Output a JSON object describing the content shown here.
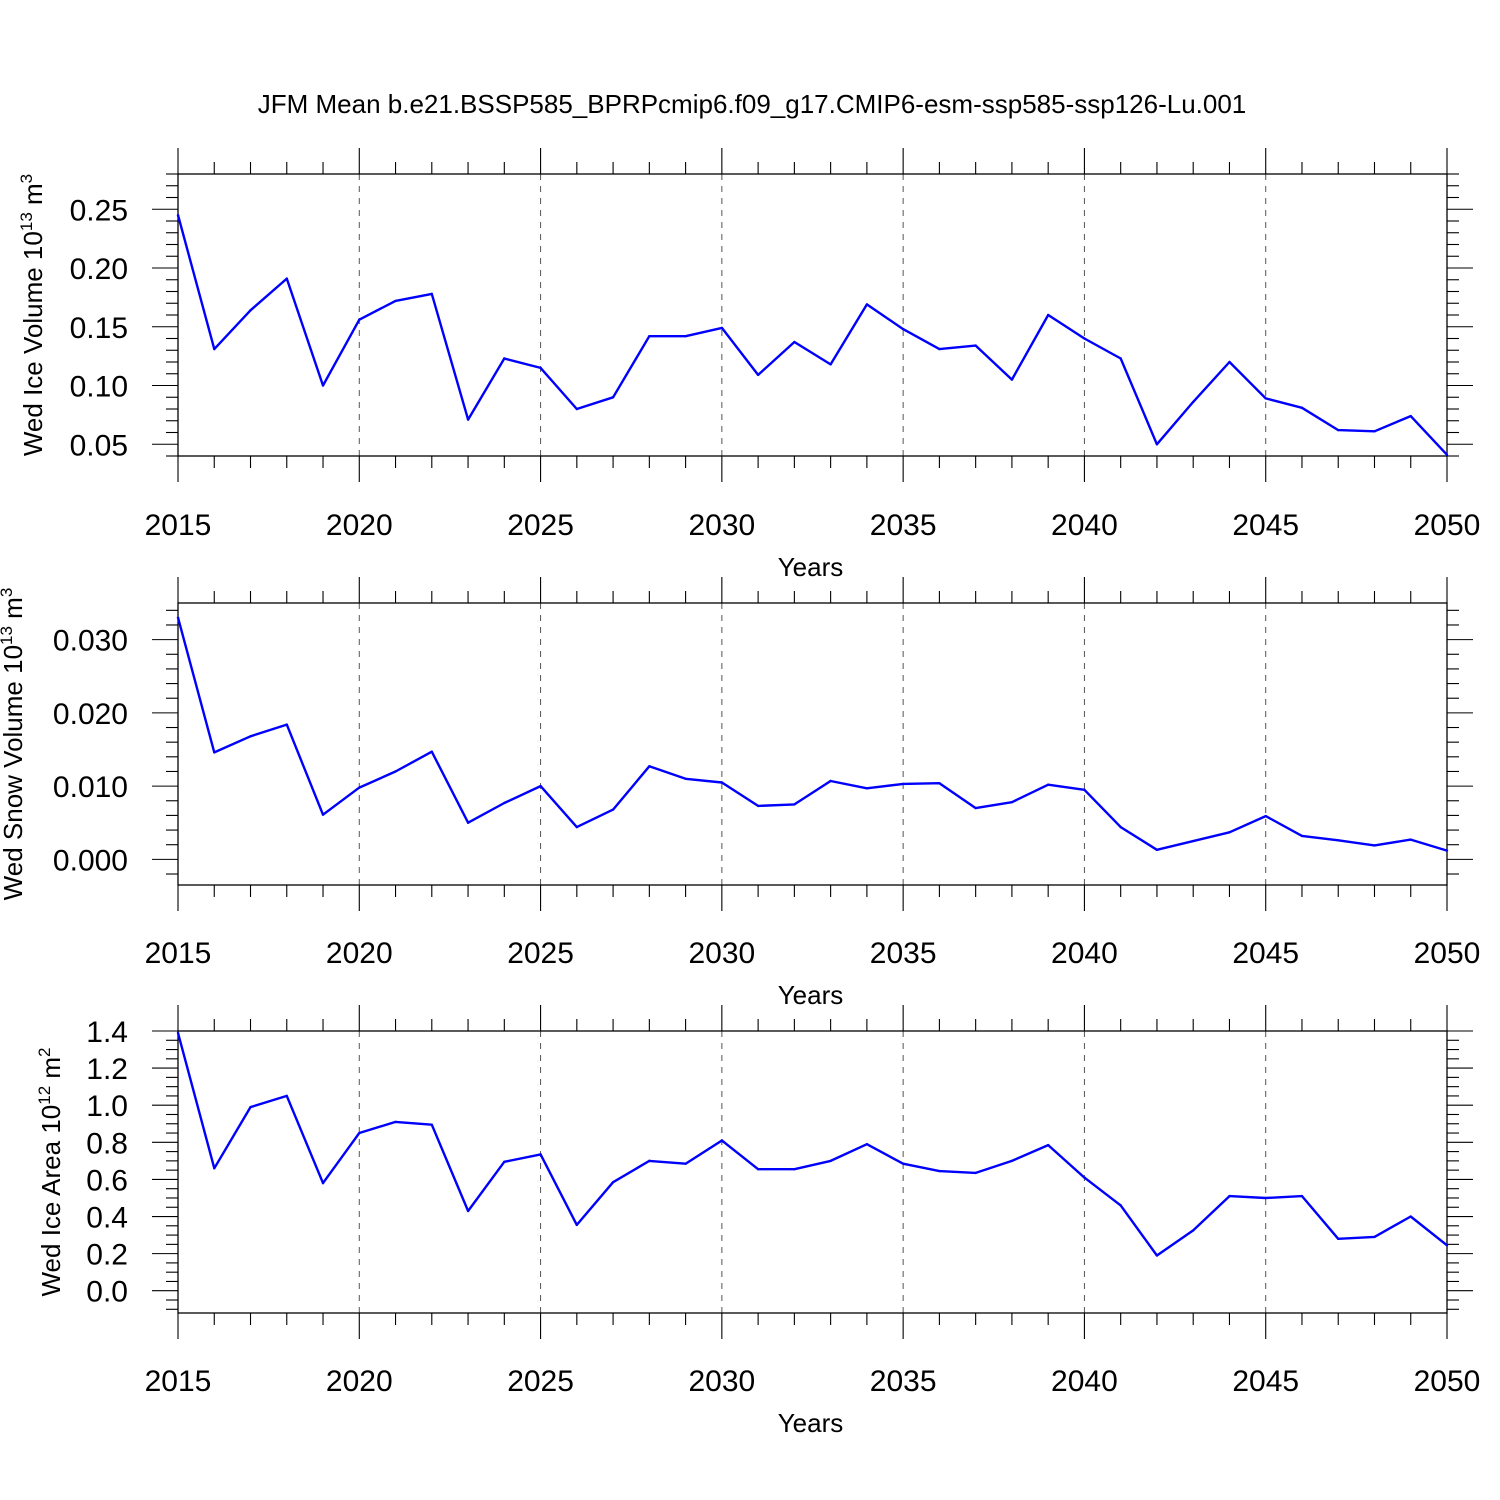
{
  "figure": {
    "title": "JFM Mean b.e21.BSSP585_BPRPcmip6.f09_g17.CMIP6-esm-ssp585-ssp126-Lu.001"
  },
  "colors": {
    "series": "#0000ff",
    "axes": "#000000",
    "grid": "#555555"
  },
  "chart_data": [
    {
      "type": "line",
      "xlabel": "Years",
      "ylabel": {
        "main": "Wed Ice Volume 10",
        "exponent": "13",
        "unit": " m",
        "unit_exponent": "3"
      },
      "xlim": [
        2015,
        2050
      ],
      "ylim": [
        0.04,
        0.28
      ],
      "x_ticks": [
        2015,
        2020,
        2025,
        2030,
        2035,
        2040,
        2045,
        2050
      ],
      "x_tick_labels": [
        "2015",
        "2020",
        "2025",
        "2030",
        "2035",
        "2040",
        "2045",
        "2050"
      ],
      "y_ticks": [
        0.05,
        0.1,
        0.15,
        0.2,
        0.25
      ],
      "y_tick_labels": [
        "0.05",
        "0.10",
        "0.15",
        "0.20",
        "0.25"
      ],
      "y_minor_step": 0.01,
      "grid": "vertical dashed at major x ticks",
      "x": [
        2015,
        2016,
        2017,
        2018,
        2019,
        2020,
        2021,
        2022,
        2023,
        2024,
        2025,
        2026,
        2027,
        2028,
        2029,
        2030,
        2031,
        2032,
        2033,
        2034,
        2035,
        2036,
        2037,
        2038,
        2039,
        2040,
        2041,
        2042,
        2043,
        2044,
        2045,
        2046,
        2047,
        2048,
        2049,
        2050
      ],
      "values": [
        0.245,
        0.131,
        0.164,
        0.191,
        0.1,
        0.156,
        0.172,
        0.178,
        0.071,
        0.123,
        0.115,
        0.08,
        0.09,
        0.142,
        0.142,
        0.149,
        0.109,
        0.137,
        0.118,
        0.169,
        0.148,
        0.131,
        0.134,
        0.105,
        0.16,
        0.14,
        0.123,
        0.05,
        0.086,
        0.12,
        0.089,
        0.081,
        0.062,
        0.061,
        0.074,
        0.041
      ]
    },
    {
      "type": "line",
      "xlabel": "Years",
      "ylabel": {
        "main": "Wed Snow Volume 10",
        "exponent": "13",
        "unit": " m",
        "unit_exponent": "3"
      },
      "xlim": [
        2015,
        2050
      ],
      "ylim": [
        -0.0035,
        0.035
      ],
      "x_ticks": [
        2015,
        2020,
        2025,
        2030,
        2035,
        2040,
        2045,
        2050
      ],
      "x_tick_labels": [
        "2015",
        "2020",
        "2025",
        "2030",
        "2035",
        "2040",
        "2045",
        "2050"
      ],
      "y_ticks": [
        0.0,
        0.01,
        0.02,
        0.03
      ],
      "y_tick_labels": [
        "0.000",
        "0.010",
        "0.020",
        "0.030"
      ],
      "y_minor_step": 0.002,
      "grid": "vertical dashed at major x ticks",
      "x": [
        2015,
        2016,
        2017,
        2018,
        2019,
        2020,
        2021,
        2022,
        2023,
        2024,
        2025,
        2026,
        2027,
        2028,
        2029,
        2030,
        2031,
        2032,
        2033,
        2034,
        2035,
        2036,
        2037,
        2038,
        2039,
        2040,
        2041,
        2042,
        2043,
        2044,
        2045,
        2046,
        2047,
        2048,
        2049,
        2050
      ],
      "values": [
        0.033,
        0.0146,
        0.0168,
        0.0184,
        0.0061,
        0.0098,
        0.012,
        0.0147,
        0.005,
        0.0077,
        0.01,
        0.0044,
        0.0068,
        0.0127,
        0.011,
        0.0105,
        0.0073,
        0.0075,
        0.0107,
        0.0097,
        0.0103,
        0.0104,
        0.007,
        0.0078,
        0.0102,
        0.0095,
        0.0044,
        0.0013,
        0.0025,
        0.0037,
        0.0059,
        0.0032,
        0.0026,
        0.0019,
        0.0027,
        0.0012
      ]
    },
    {
      "type": "line",
      "xlabel": "Years",
      "ylabel": {
        "main": "Wed Ice Area 10",
        "exponent": "12",
        "unit": " m",
        "unit_exponent": "2"
      },
      "xlim": [
        2015,
        2050
      ],
      "ylim": [
        -0.12,
        1.4
      ],
      "x_ticks": [
        2015,
        2020,
        2025,
        2030,
        2035,
        2040,
        2045,
        2050
      ],
      "x_tick_labels": [
        "2015",
        "2020",
        "2025",
        "2030",
        "2035",
        "2040",
        "2045",
        "2050"
      ],
      "y_ticks": [
        0.0,
        0.2,
        0.4,
        0.6,
        0.8,
        1.0,
        1.2,
        1.4
      ],
      "y_tick_labels": [
        "0.0",
        "0.2",
        "0.4",
        "0.6",
        "0.8",
        "1.0",
        "1.2",
        "1.4"
      ],
      "y_minor_step": 0.05,
      "grid": "vertical dashed at major x ticks",
      "x": [
        2015,
        2016,
        2017,
        2018,
        2019,
        2020,
        2021,
        2022,
        2023,
        2024,
        2025,
        2026,
        2027,
        2028,
        2029,
        2030,
        2031,
        2032,
        2033,
        2034,
        2035,
        2036,
        2037,
        2038,
        2039,
        2040,
        2041,
        2042,
        2043,
        2044,
        2045,
        2046,
        2047,
        2048,
        2049,
        2050
      ],
      "values": [
        1.39,
        0.66,
        0.99,
        1.05,
        0.58,
        0.85,
        0.91,
        0.895,
        0.43,
        0.695,
        0.735,
        0.355,
        0.585,
        0.7,
        0.685,
        0.81,
        0.655,
        0.655,
        0.7,
        0.79,
        0.685,
        0.645,
        0.635,
        0.7,
        0.785,
        0.61,
        0.46,
        0.19,
        0.325,
        0.51,
        0.5,
        0.51,
        0.28,
        0.29,
        0.4,
        0.245
      ]
    }
  ]
}
